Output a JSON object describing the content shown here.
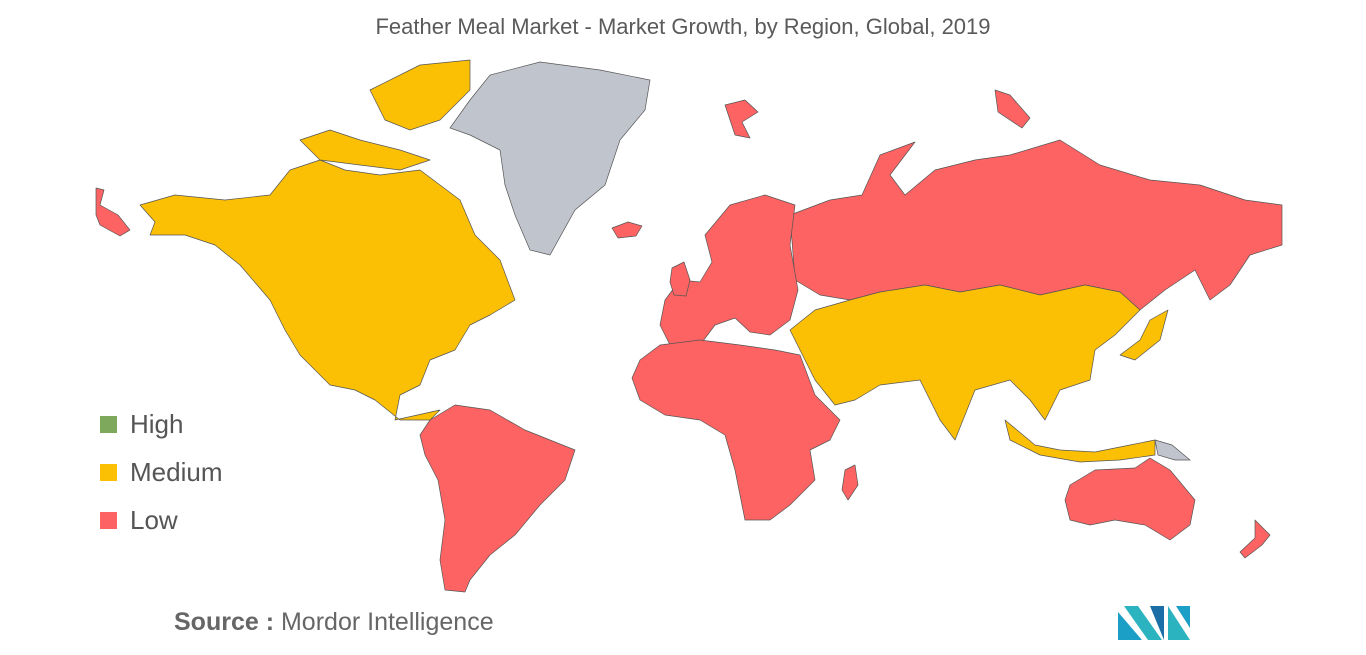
{
  "title": "Feather Meal Market - Market Growth, by Region, Global, 2019",
  "legend": {
    "items": [
      {
        "name": "High",
        "color": "#7ea85c"
      },
      {
        "name": "Medium",
        "color": "#fbbf04"
      },
      {
        "name": "Low",
        "color": "#fd6362"
      }
    ]
  },
  "source": {
    "label": "Source :",
    "text": "Mordor Intelligence"
  }
}
